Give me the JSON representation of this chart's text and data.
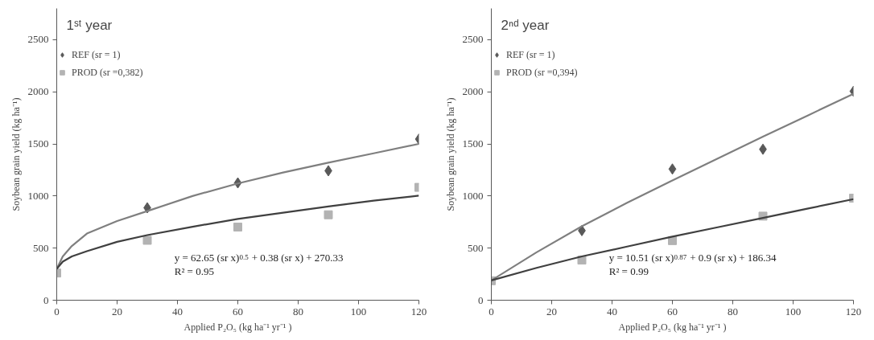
{
  "chart_data": [
    {
      "type": "scatter",
      "title": "1ˢᵗ year",
      "xlabel": "Applied P₂O₅ (kg ha⁻¹ yr⁻¹ )",
      "ylabel": "Soybean grain yield (kg ha⁻¹)",
      "xlim": [
        0,
        120
      ],
      "xticks": [
        0,
        20,
        40,
        60,
        80,
        100,
        120
      ],
      "ylim": [
        0,
        2800
      ],
      "yticks": [
        0,
        500,
        1000,
        1500,
        2000,
        2500
      ],
      "grid": false,
      "legend": "top left",
      "annotations": [
        "y = 62.65 (sr x)$^{0.5}$ + 0.38 (sr x) + 270.33",
        "R² = 0.95"
      ],
      "series": [
        {
          "name": "REF (sr = 1)",
          "marker": "diamond",
          "color": "#595959",
          "x": [
            30,
            60,
            90,
            120
          ],
          "values": [
            887,
            1126,
            1242,
            1546
          ]
        },
        {
          "name": "PROD (sr =0,382)",
          "marker": "square",
          "color": "#b3b3b3",
          "x": [
            0,
            30,
            60,
            90,
            120
          ],
          "values": [
            261,
            575,
            702,
            820,
            1083
          ]
        },
        {
          "type": "line",
          "marker": "none",
          "color": "#7f7f7f",
          "x": [
            0,
            2,
            5,
            10,
            20,
            30,
            45,
            60,
            75,
            90,
            105,
            120
          ],
          "values": [
            300,
            420,
            520,
            640,
            760,
            855,
            1000,
            1120,
            1225,
            1320,
            1410,
            1500
          ]
        },
        {
          "type": "line",
          "marker": "none",
          "color": "#404040",
          "x": [
            0,
            2,
            5,
            10,
            20,
            30,
            45,
            60,
            75,
            90,
            105,
            120
          ],
          "values": [
            300,
            370,
            420,
            470,
            560,
            625,
            705,
            780,
            840,
            900,
            955,
            1003
          ]
        }
      ]
    },
    {
      "type": "scatter",
      "title": "2ⁿᵈ year",
      "xlabel": "Applied P₂O₅ (kg ha⁻¹ yr⁻¹ )",
      "ylabel": "Soybean grain yield (kg ha⁻¹)",
      "xlim": [
        0,
        120
      ],
      "xticks": [
        0,
        20,
        40,
        60,
        80,
        100,
        120
      ],
      "ylim": [
        0,
        2800
      ],
      "yticks": [
        0,
        500,
        1000,
        1500,
        2000,
        2500
      ],
      "grid": false,
      "legend": "top left",
      "annotations": [
        "y = 10.51 (sr x)$^{0.87}$ + 0.9 (sr x) + 186.34",
        "R² = 0.99"
      ],
      "series": [
        {
          "name": "REF (sr = 1)",
          "marker": "diamond",
          "color": "#595959",
          "x": [
            30,
            60,
            90,
            120
          ],
          "values": [
            668,
            1259,
            1449,
            2005
          ]
        },
        {
          "name": "PROD (sr =0,394)",
          "marker": "square",
          "color": "#b3b3b3",
          "x": [
            0,
            30,
            60,
            90,
            120
          ],
          "values": [
            187,
            385,
            572,
            807,
            979
          ]
        },
        {
          "type": "line",
          "marker": "none",
          "color": "#7f7f7f",
          "x": [
            0,
            15,
            30,
            45,
            60,
            75,
            90,
            105,
            120
          ],
          "values": [
            190,
            460,
            710,
            935,
            1150,
            1360,
            1570,
            1775,
            1980
          ]
        },
        {
          "type": "line",
          "marker": "none",
          "color": "#404040",
          "x": [
            0,
            15,
            30,
            45,
            60,
            75,
            90,
            105,
            120
          ],
          "values": [
            190,
            310,
            420,
            515,
            610,
            700,
            790,
            880,
            970
          ]
        }
      ]
    }
  ]
}
